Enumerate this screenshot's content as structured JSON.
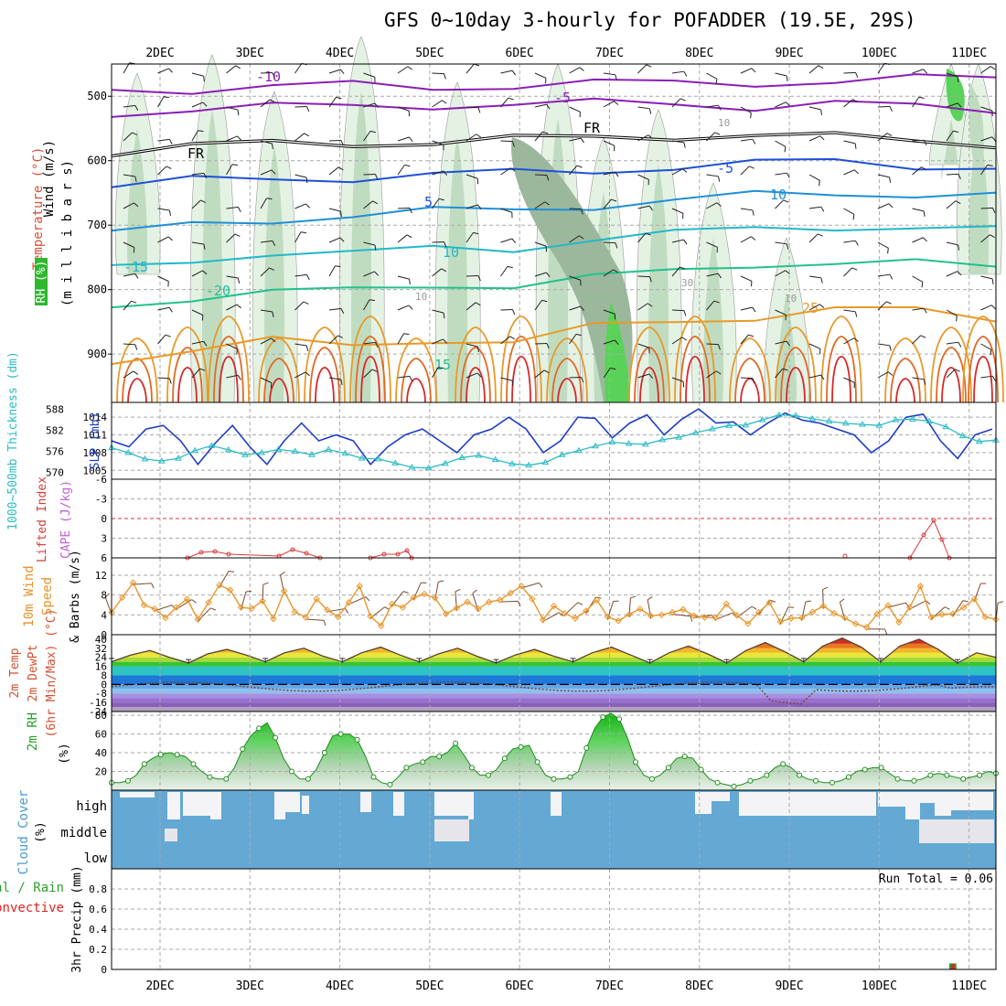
{
  "title": "GFS 0~10day 3-hourly for POFADDER (19.5E, 29S)",
  "colors": {
    "purple": "#8a1fb5",
    "black": "#000000",
    "blue": "#1f4fd8",
    "midblue": "#1f8fd8",
    "cyan": "#22b8c8",
    "teal": "#22c090",
    "orange": "#e89a2a",
    "red": "#d82828",
    "rhLight": "#e4f2e4",
    "rhMid": "#c0dcc0",
    "rhDark": "#9cb89c",
    "rhGreen": "#5ad25a",
    "slp": "#1e3cc8",
    "thick": "#2bbcc4",
    "wind": "#e8962a",
    "barb": "#7a4a30",
    "cloud": "#64a8d4",
    "cloudClear": "#f4f4f6",
    "rhsfc": "#2ea02e",
    "precipGreen": "#2ea02e",
    "precipRed": "#e02020"
  },
  "chart_data": {
    "type": "meteogram",
    "dates": [
      "2DEC",
      "3DEC",
      "4DEC",
      "5DEC",
      "6DEC",
      "7DEC",
      "8DEC",
      "9DEC",
      "10DEC",
      "11DEC"
    ],
    "time_axis": {
      "start": "1DEC 12Z",
      "end": "11DEC 03Z",
      "step_hours": 3
    },
    "panels": [
      {
        "id": "upper_air",
        "ylabels": [
          "Wind (m/s)",
          "Temperature (°C)",
          "RH (%)"
        ],
        "axis_label": "(m i l l i b a r s)",
        "y_ticks": [
          500,
          600,
          700,
          800,
          900
        ],
        "ylim": [
          450,
          975
        ],
        "temperature_labels": [
          "-10",
          "-5",
          "FR",
          "FR",
          "-5",
          "5",
          "10",
          "10",
          "-15",
          "-20",
          "15",
          "25"
        ],
        "rh_labels": [
          "10",
          "30",
          "10",
          "10"
        ],
        "isotherms": [
          {
            "label": "-10",
            "color": "purple",
            "pressure": [
              490,
              488,
              485,
              484,
              486,
              482,
              480,
              481,
              478,
              476,
              474,
              472
            ]
          },
          {
            "label": "-5",
            "color": "purple",
            "pressure": [
              525,
              520,
              518,
              515,
              512,
              514,
              512,
              510,
              515,
              512,
              518,
              520
            ]
          },
          {
            "label": "FR",
            "color": "black",
            "pressure": [
              585,
              578,
              575,
              572,
              570,
              568,
              565,
              560,
              560,
              565,
              568,
              572
            ]
          },
          {
            "label": "5",
            "color": "blue",
            "pressure": [
              640,
              632,
              628,
              625,
              622,
              620,
              615,
              608,
              605,
              602,
              606,
              610
            ]
          },
          {
            "label": "10",
            "color": "midblue",
            "pressure": [
              715,
              700,
              690,
              685,
              680,
              676,
              668,
              662,
              655,
              650,
              650,
              655
            ]
          },
          {
            "label": "15",
            "color": "cyan",
            "pressure": [
              770,
              755,
              740,
              745,
              738,
              735,
              720,
              715,
              705,
              700,
              705,
              710
            ]
          },
          {
            "label": "20",
            "color": "teal",
            "pressure": [
              830,
              810,
              800,
              805,
              795,
              790,
              780,
              775,
              760,
              755,
              760,
              768
            ]
          },
          {
            "label": "25",
            "color": "orange",
            "pressure": [
              910,
              890,
              880,
              890,
              875,
              880,
              860,
              850,
              840,
              830,
              835,
              845
            ]
          }
        ]
      },
      {
        "id": "thickness_slp",
        "ylabels": [
          "1000~500mb Thickness (dm)",
          "SLP (mb)"
        ],
        "thickness_ticks": [
          570,
          576,
          582,
          588
        ],
        "slp_ticks": [
          1005,
          1008,
          1011,
          1014
        ],
        "thickness_lim": [
          568,
          590
        ],
        "slp_lim": [
          1003.5,
          1016.5
        ],
        "slp": [
          1010,
          1009,
          1012,
          1012.6,
          1010,
          1006,
          1009.6,
          1012.6,
          1009,
          1006,
          1010,
          1013,
          1010,
          1011,
          1010,
          1006,
          1009,
          1011,
          1012,
          1010,
          1008,
          1011,
          1012,
          1014,
          1012,
          1008,
          1010,
          1014,
          1013.8,
          1010.5,
          1013,
          1014.4,
          1011,
          1013.6,
          1015.4,
          1013,
          1013.2,
          1011,
          1013,
          1014.7,
          1013.5,
          1013,
          1012,
          1011,
          1008,
          1010,
          1014,
          1014.5,
          1010,
          1007,
          1011,
          1012
        ],
        "thickness": [
          577,
          575.6,
          573.8,
          573.2,
          574,
          576.2,
          577.6,
          576.4,
          575,
          575.6,
          576.5,
          576,
          575,
          576.5,
          575.4,
          574,
          573.8,
          572.6,
          571.4,
          571.2,
          572.5,
          574.2,
          574.8,
          573.6,
          572.4,
          572,
          572.8,
          575,
          576.2,
          577.5,
          578.6,
          578.2,
          578,
          579.3,
          580,
          581.3,
          582.4,
          583.4,
          583.5,
          585,
          586.4,
          586.2,
          585.3,
          584.6,
          584,
          583.7,
          583.4,
          585,
          585.2,
          584.6,
          583,
          580.4,
          578.8,
          579.2
        ]
      },
      {
        "id": "stability",
        "ylabels": [
          "CAPE (J/kg)",
          "Lifted Index"
        ],
        "y_ticks": [
          -6,
          -3,
          0,
          3,
          6
        ],
        "ylim": [
          -6,
          6
        ]
      },
      {
        "id": "wind10m",
        "ylabels": [
          "10m Wind Speed & Barbs (m/s)"
        ],
        "y_ticks": [
          0,
          4,
          8,
          12
        ],
        "ylim": [
          0,
          15.5
        ],
        "speed": [
          4.5,
          7.5,
          10.5,
          6,
          5.2,
          3.4,
          5.5,
          7.2,
          3.1,
          6.5,
          10,
          9,
          5.5,
          5.3,
          6.8,
          3.2,
          8.8,
          4.6,
          3.5,
          7.2,
          5,
          3.6,
          6.5,
          9.8,
          3.7,
          1.8,
          6.2,
          5.5,
          7.5,
          8.2,
          7.4,
          4.2,
          5.4,
          6.6,
          5.2,
          6.6,
          7,
          8.4,
          9.8,
          7.2,
          3,
          5.8,
          4.3,
          3.3,
          4.8,
          7,
          3.6,
          2.8,
          4.1,
          5.2,
          3.8,
          4,
          4.5,
          5.1,
          3.8,
          3.5,
          3.4,
          6.2,
          3.9,
          2.2,
          4.5,
          6.5,
          2.6,
          3.3,
          3.4,
          4.6,
          5.8,
          4.3,
          3.4,
          2.2,
          1.5,
          4.2,
          5.9,
          2.5,
          5.5,
          9.8,
          3.5,
          4.1,
          4.2,
          5.5,
          7.2,
          3.6,
          3.1
        ]
      },
      {
        "id": "temp2m",
        "ylabels": [
          "2m Temp",
          "2m DewPt",
          "(6hr Min/Max) (°C)"
        ],
        "y_ticks": [
          40,
          32,
          24,
          16,
          8,
          0,
          -8,
          -16,
          -24
        ],
        "ylim": [
          -24,
          44
        ],
        "temp": [
          20,
          26,
          30,
          24,
          19,
          27,
          31,
          26,
          20,
          28,
          32,
          25,
          20,
          28,
          33,
          26,
          20,
          27,
          32,
          25,
          19,
          26,
          31,
          25,
          20,
          28,
          33,
          26,
          19,
          28,
          34,
          27,
          19,
          30,
          37,
          29,
          20,
          34,
          41,
          33,
          20,
          34,
          40,
          31,
          19,
          28,
          24
        ]
      },
      {
        "id": "rh2m",
        "ylabels": [
          "2m RH (%)"
        ],
        "y_ticks": [
          20,
          40,
          60,
          80
        ],
        "ylim": [
          0,
          84
        ],
        "rh": [
          8,
          8,
          10,
          16,
          28,
          34,
          38,
          40,
          38,
          36,
          28,
          20,
          14,
          12,
          12,
          24,
          44,
          58,
          66,
          72,
          56,
          34,
          20,
          12,
          12,
          22,
          40,
          58,
          60,
          60,
          54,
          36,
          14,
          8,
          6,
          14,
          24,
          28,
          30,
          36,
          36,
          40,
          50,
          38,
          24,
          16,
          16,
          22,
          34,
          44,
          46,
          48,
          30,
          16,
          12,
          12,
          14,
          20,
          45,
          66,
          78,
          82,
          76,
          56,
          30,
          16,
          12,
          16,
          24,
          34,
          36,
          34,
          22,
          12,
          8,
          6,
          4,
          6,
          10,
          12,
          16,
          24,
          28,
          24,
          16,
          12,
          10,
          8,
          8,
          10,
          14,
          20,
          22,
          24,
          24,
          18,
          12,
          10,
          10,
          12,
          16,
          18,
          16,
          14,
          12,
          14,
          16,
          20,
          18
        ]
      },
      {
        "id": "cloud",
        "ylabels": [
          "Cloud Cover (%)"
        ],
        "y_ticks": [
          "high",
          "middle",
          "low"
        ]
      },
      {
        "id": "precip",
        "ylabels": [
          "Total / Rain",
          "Convective",
          "3hr Precip (mm)"
        ],
        "y_ticks": [
          0,
          0.2,
          0.4,
          0.6,
          0.8
        ],
        "ylim": [
          0,
          1
        ],
        "run_total": "Run Total = 0.06",
        "total": [
          0,
          0,
          0,
          0,
          0,
          0,
          0,
          0,
          0,
          0,
          0,
          0,
          0,
          0,
          0,
          0,
          0,
          0,
          0,
          0,
          0,
          0,
          0,
          0,
          0,
          0,
          0,
          0,
          0,
          0,
          0,
          0,
          0,
          0,
          0,
          0,
          0,
          0,
          0,
          0,
          0,
          0,
          0,
          0,
          0,
          0,
          0,
          0,
          0,
          0,
          0,
          0,
          0,
          0,
          0,
          0,
          0,
          0,
          0,
          0,
          0,
          0,
          0,
          0,
          0,
          0,
          0,
          0,
          0,
          0,
          0,
          0,
          0,
          0,
          0,
          0,
          0,
          0,
          0.06,
          0,
          0,
          0,
          0
        ]
      }
    ]
  }
}
